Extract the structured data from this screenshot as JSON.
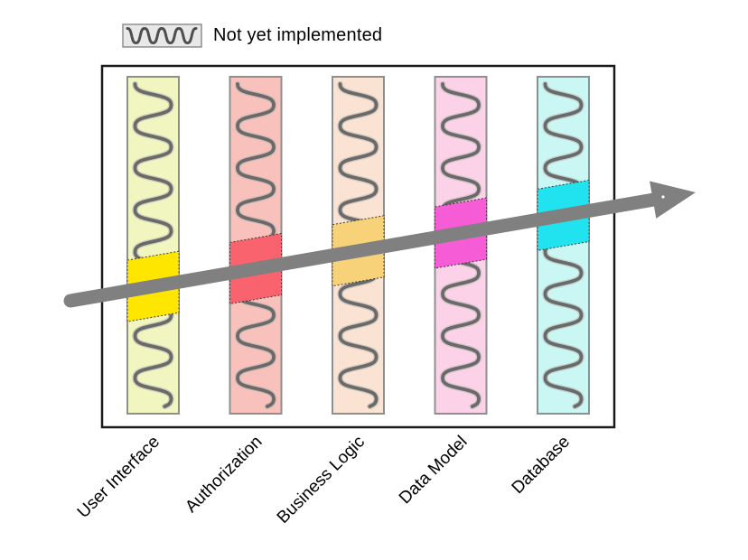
{
  "legend": {
    "label": "Not yet implemented"
  },
  "layers": [
    {
      "label": "User Interface",
      "bar_color": "#f1f6c1",
      "slice_color": "#ffe600"
    },
    {
      "label": "Authorization",
      "bar_color": "#f9c1bb",
      "slice_color": "#f8636d"
    },
    {
      "label": "Business Logic",
      "bar_color": "#fae3d2",
      "slice_color": "#f8d278"
    },
    {
      "label": "Data Model",
      "bar_color": "#fbd2e7",
      "slice_color": "#f55cd6"
    },
    {
      "label": "Database",
      "bar_color": "#caf7f3",
      "slice_color": "#21e2ef"
    }
  ],
  "colors": {
    "background": "#ffffff",
    "frame_border": "#1a1a1a",
    "bar_border": "#8f8f8f",
    "wave_stroke": "#6a6a6a",
    "wave_halo": "#b4b4ae",
    "slice_border": "#3a3a3a",
    "arrow": "#808080",
    "legend_swatch_fill": "#e8e8e8",
    "legend_swatch_border": "#8f8f8f",
    "label_text": "#000000"
  }
}
